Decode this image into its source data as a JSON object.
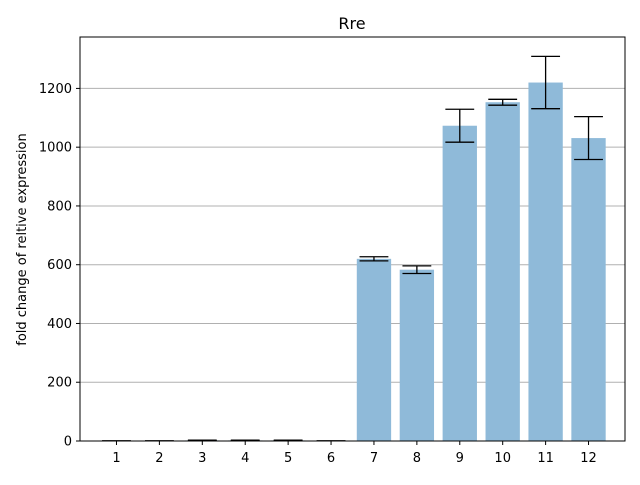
{
  "chart_data": {
    "type": "bar",
    "title": "Rre",
    "xlabel": "",
    "ylabel": "fold change of reltive expression",
    "categories": [
      "1",
      "2",
      "3",
      "4",
      "5",
      "6",
      "7",
      "8",
      "9",
      "10",
      "11",
      "12"
    ],
    "values": [
      0.5,
      0.5,
      2,
      2,
      2,
      0.5,
      620,
      583,
      1073,
      1153,
      1220,
      1031
    ],
    "errors": [
      0,
      0,
      1,
      1,
      1,
      0,
      7,
      13,
      56,
      10,
      89,
      73
    ],
    "ylim": [
      0,
      1375
    ],
    "yticks": [
      0,
      200,
      400,
      600,
      800,
      1000,
      1200
    ],
    "grid": "horizontal",
    "bar_color": "#8fbad9",
    "error_color": "#000000"
  }
}
